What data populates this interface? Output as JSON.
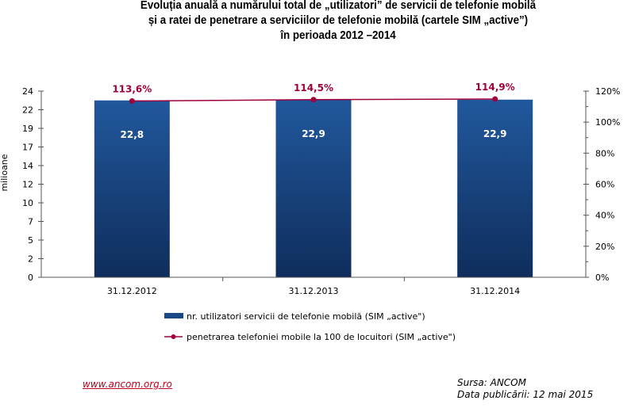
{
  "title": {
    "line1": "Evoluția anuală a numărului total de „utilizatori” de servicii de telefonie mobilă",
    "line2": "și a ratei de penetrare a serviciilor de telefonie mobilă (cartele SIM „active”)",
    "line3": "în perioada 2012 –2014"
  },
  "chart_data": {
    "type": "bar",
    "title": "Evoluția anuală a numărului total de „utilizatori” de servicii de telefonie mobilă și a ratei de penetrare a serviciilor de telefonie mobilă (cartele SIM „active”) în perioada 2012 –2014",
    "categories": [
      "31.12.2012",
      "31.12.2013",
      "31.12.2014"
    ],
    "series": [
      {
        "name": "nr. utilizatori servicii de telefonie mobilă (SIM „active\")",
        "type": "bar",
        "axis": "left",
        "values": [
          22.8,
          22.9,
          22.9
        ],
        "labels": [
          "22,8",
          "22,9",
          "22,9"
        ],
        "color": "#1f4f8f"
      },
      {
        "name": "penetrarea telefoniei mobile la 100 de locuitori (SIM „active\")",
        "type": "line",
        "axis": "right",
        "values": [
          113.6,
          114.5,
          114.9
        ],
        "labels": [
          "113,6%",
          "114,5%",
          "114,9%"
        ],
        "color": "#a0003c"
      }
    ],
    "ylabel": "milioane",
    "xlabel": "",
    "ylim": [
      0,
      24
    ],
    "y_ticks": [
      "0",
      "2",
      "5",
      "7",
      "10",
      "12",
      "14",
      "17",
      "19",
      "22",
      "24"
    ],
    "y2lim": [
      0,
      120
    ],
    "y2_ticks": [
      "0%",
      "20%",
      "40%",
      "60%",
      "80%",
      "100%",
      "120%"
    ],
    "grid": false,
    "legend_position": "bottom"
  },
  "legend": {
    "bar_label": "nr. utilizatori servicii de telefonie mobilă (SIM „active\")",
    "line_label": "penetrarea telefoniei mobile la 100 de locuitori (SIM „active\")"
  },
  "footer": {
    "link": "www.ancom.org.ro",
    "source": "Sursa: ANCOM",
    "published": "Data publicării: 12 mai 2015"
  }
}
